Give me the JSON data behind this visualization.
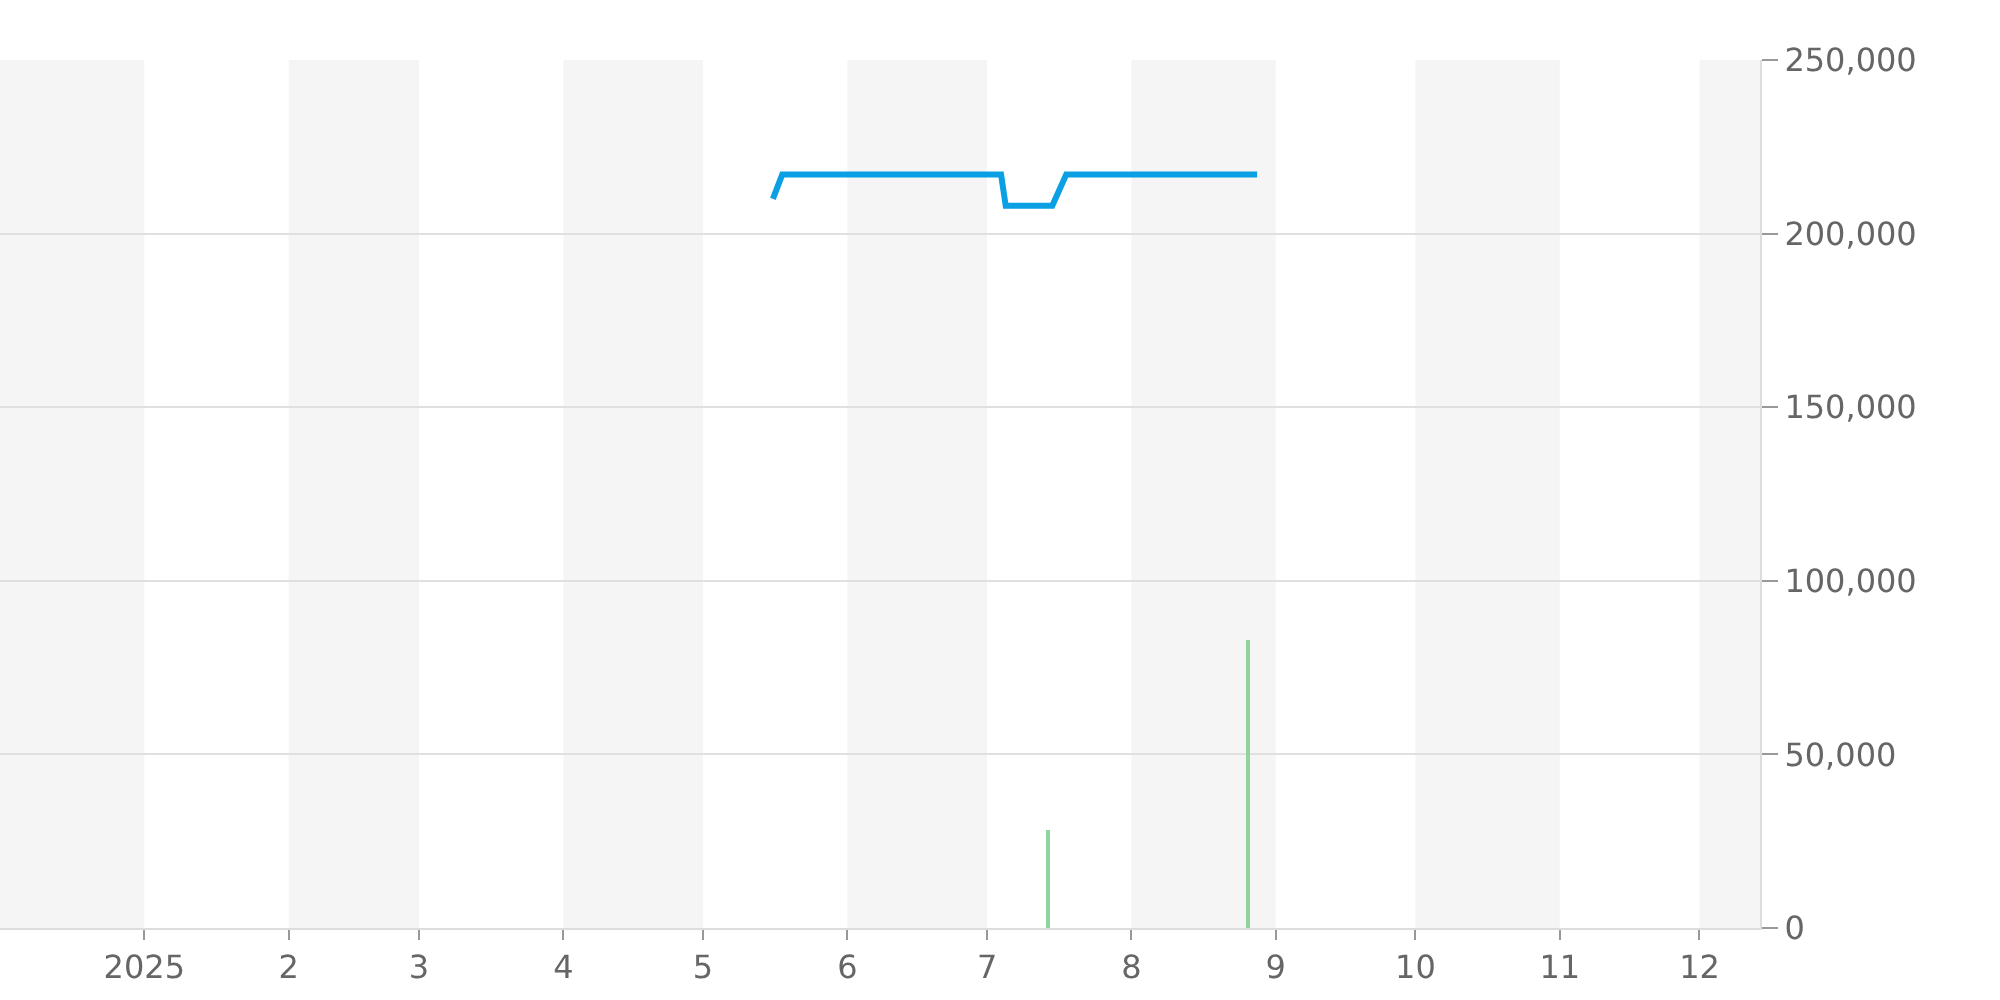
{
  "chart_data": {
    "type": "line",
    "series": [
      {
        "color": "#0b9fe3",
        "x": [
          "2025-05-16",
          "2025-05-18",
          "2025-07-04",
          "2025-07-05",
          "2025-07-15",
          "2025-07-18",
          "2025-08-28"
        ],
        "values": [
          210000,
          217000,
          217000,
          208000,
          208000,
          217000,
          217000
        ]
      },
      {
        "type": "bar",
        "color": "#8fd4a0",
        "x": [
          "2025-07-14",
          "2025-08-26"
        ],
        "values": [
          28000,
          83000
        ]
      }
    ],
    "xlim": [
      "2024-12-01",
      "2025-12-14"
    ],
    "xticks": [
      {
        "value": "2025-01-01",
        "label": "2025"
      },
      {
        "value": "2025-02-01",
        "label": "2"
      },
      {
        "value": "2025-03-01",
        "label": "3"
      },
      {
        "value": "2025-04-01",
        "label": "4"
      },
      {
        "value": "2025-05-01",
        "label": "5"
      },
      {
        "value": "2025-06-01",
        "label": "6"
      },
      {
        "value": "2025-07-01",
        "label": "7"
      },
      {
        "value": "2025-08-01",
        "label": "8"
      },
      {
        "value": "2025-09-01",
        "label": "9"
      },
      {
        "value": "2025-10-01",
        "label": "10"
      },
      {
        "value": "2025-11-01",
        "label": "11"
      },
      {
        "value": "2025-12-01",
        "label": "12"
      }
    ],
    "ylim": [
      0,
      250000
    ],
    "yticks": [
      {
        "value": 0,
        "label": "0"
      },
      {
        "value": 50000,
        "label": "50,000"
      },
      {
        "value": 100000,
        "label": "100,000"
      },
      {
        "value": 150000,
        "label": "150,000"
      },
      {
        "value": 200000,
        "label": "200,000"
      },
      {
        "value": 250000,
        "label": "250,000"
      }
    ],
    "bands": [
      {
        "axis": "x",
        "from": "2024-12-01",
        "to": "2025-01-01",
        "color": "#f5f5f5"
      },
      {
        "axis": "x",
        "from": "2025-02-01",
        "to": "2025-03-01",
        "color": "#f5f5f5"
      },
      {
        "axis": "x",
        "from": "2025-04-01",
        "to": "2025-05-01",
        "color": "#f5f5f5"
      },
      {
        "axis": "x",
        "from": "2025-06-01",
        "to": "2025-07-01",
        "color": "#f5f5f5"
      },
      {
        "axis": "x",
        "from": "2025-08-01",
        "to": "2025-09-01",
        "color": "#f5f5f5"
      },
      {
        "axis": "x",
        "from": "2025-10-01",
        "to": "2025-11-01",
        "color": "#f5f5f5"
      },
      {
        "axis": "x",
        "from": "2025-12-01",
        "to": "2025-12-14",
        "color": "#f5f5f5"
      }
    ],
    "grid": "y",
    "line_style": "solid"
  }
}
